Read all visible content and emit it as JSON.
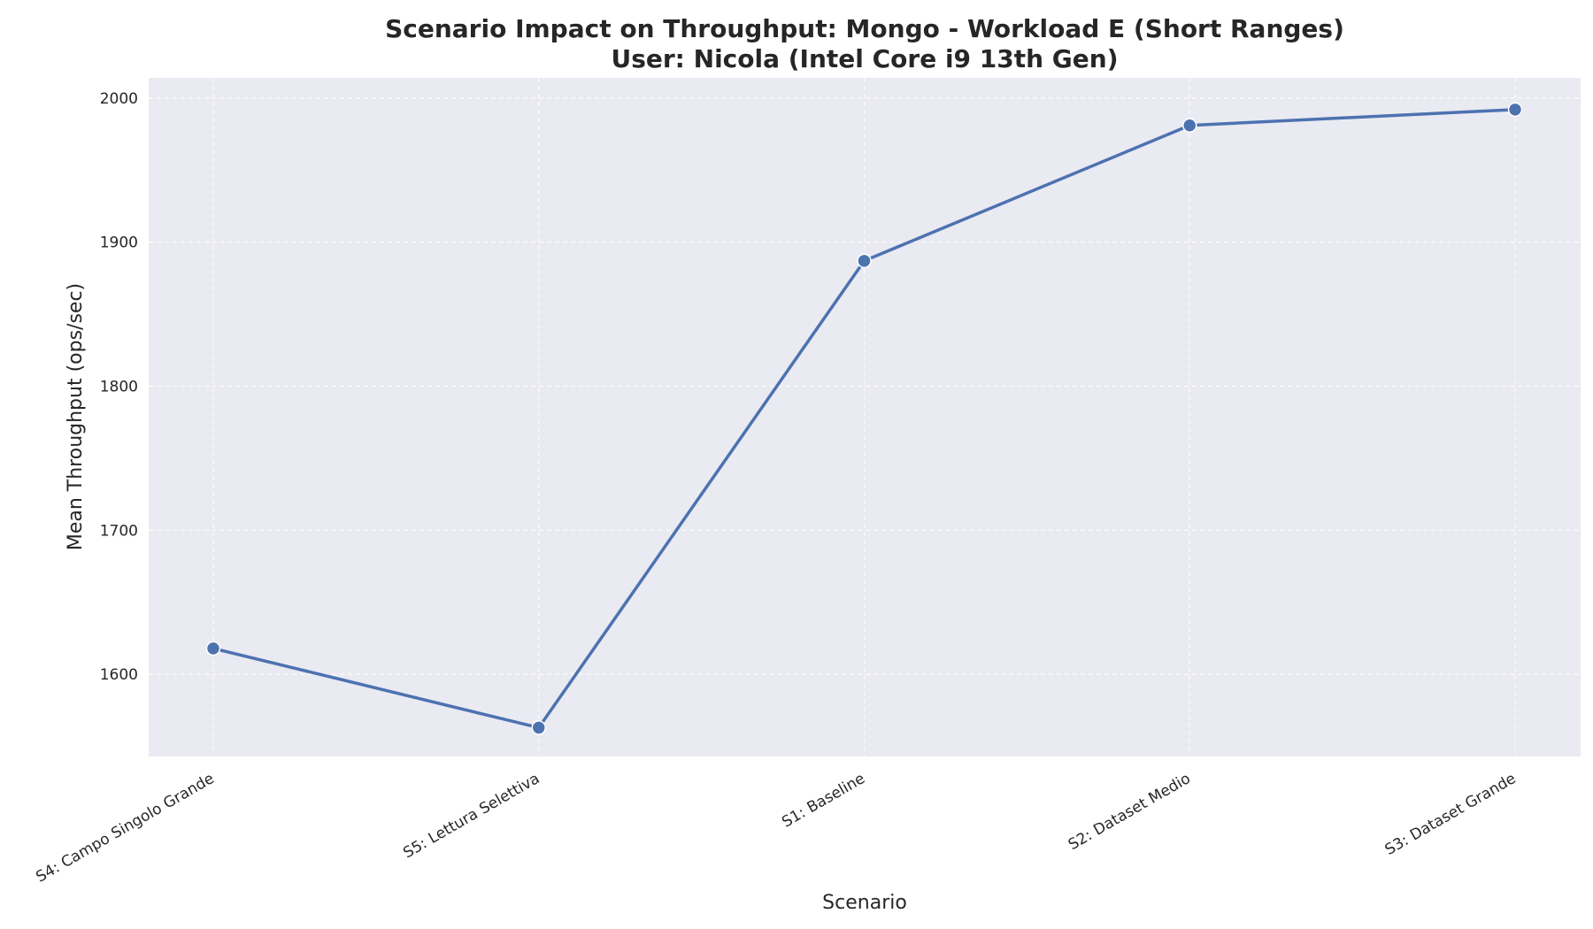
{
  "chart_data": {
    "type": "line",
    "title_line1": "Scenario Impact on Throughput: Mongo - Workload E (Short Ranges)",
    "title_line2": "User: Nicola (Intel Core i9 13th Gen)",
    "xlabel": "Scenario",
    "ylabel": "Mean Throughput (ops/sec)",
    "categories": [
      "S4: Campo Singolo Grande",
      "S5: Lettura Selettiva",
      "S1: Baseline",
      "S2: Dataset Medio",
      "S3: Dataset Grande"
    ],
    "values": [
      1618,
      1563,
      1887,
      1981,
      1992
    ],
    "ylim": [
      1543,
      2014
    ],
    "yticks": [
      1600,
      1700,
      1800,
      1900,
      2000
    ],
    "grid": true,
    "legend": "none",
    "colors": {
      "background": "#eaeaf2",
      "line": "#4c72b0",
      "grid": "#ffffff"
    }
  }
}
